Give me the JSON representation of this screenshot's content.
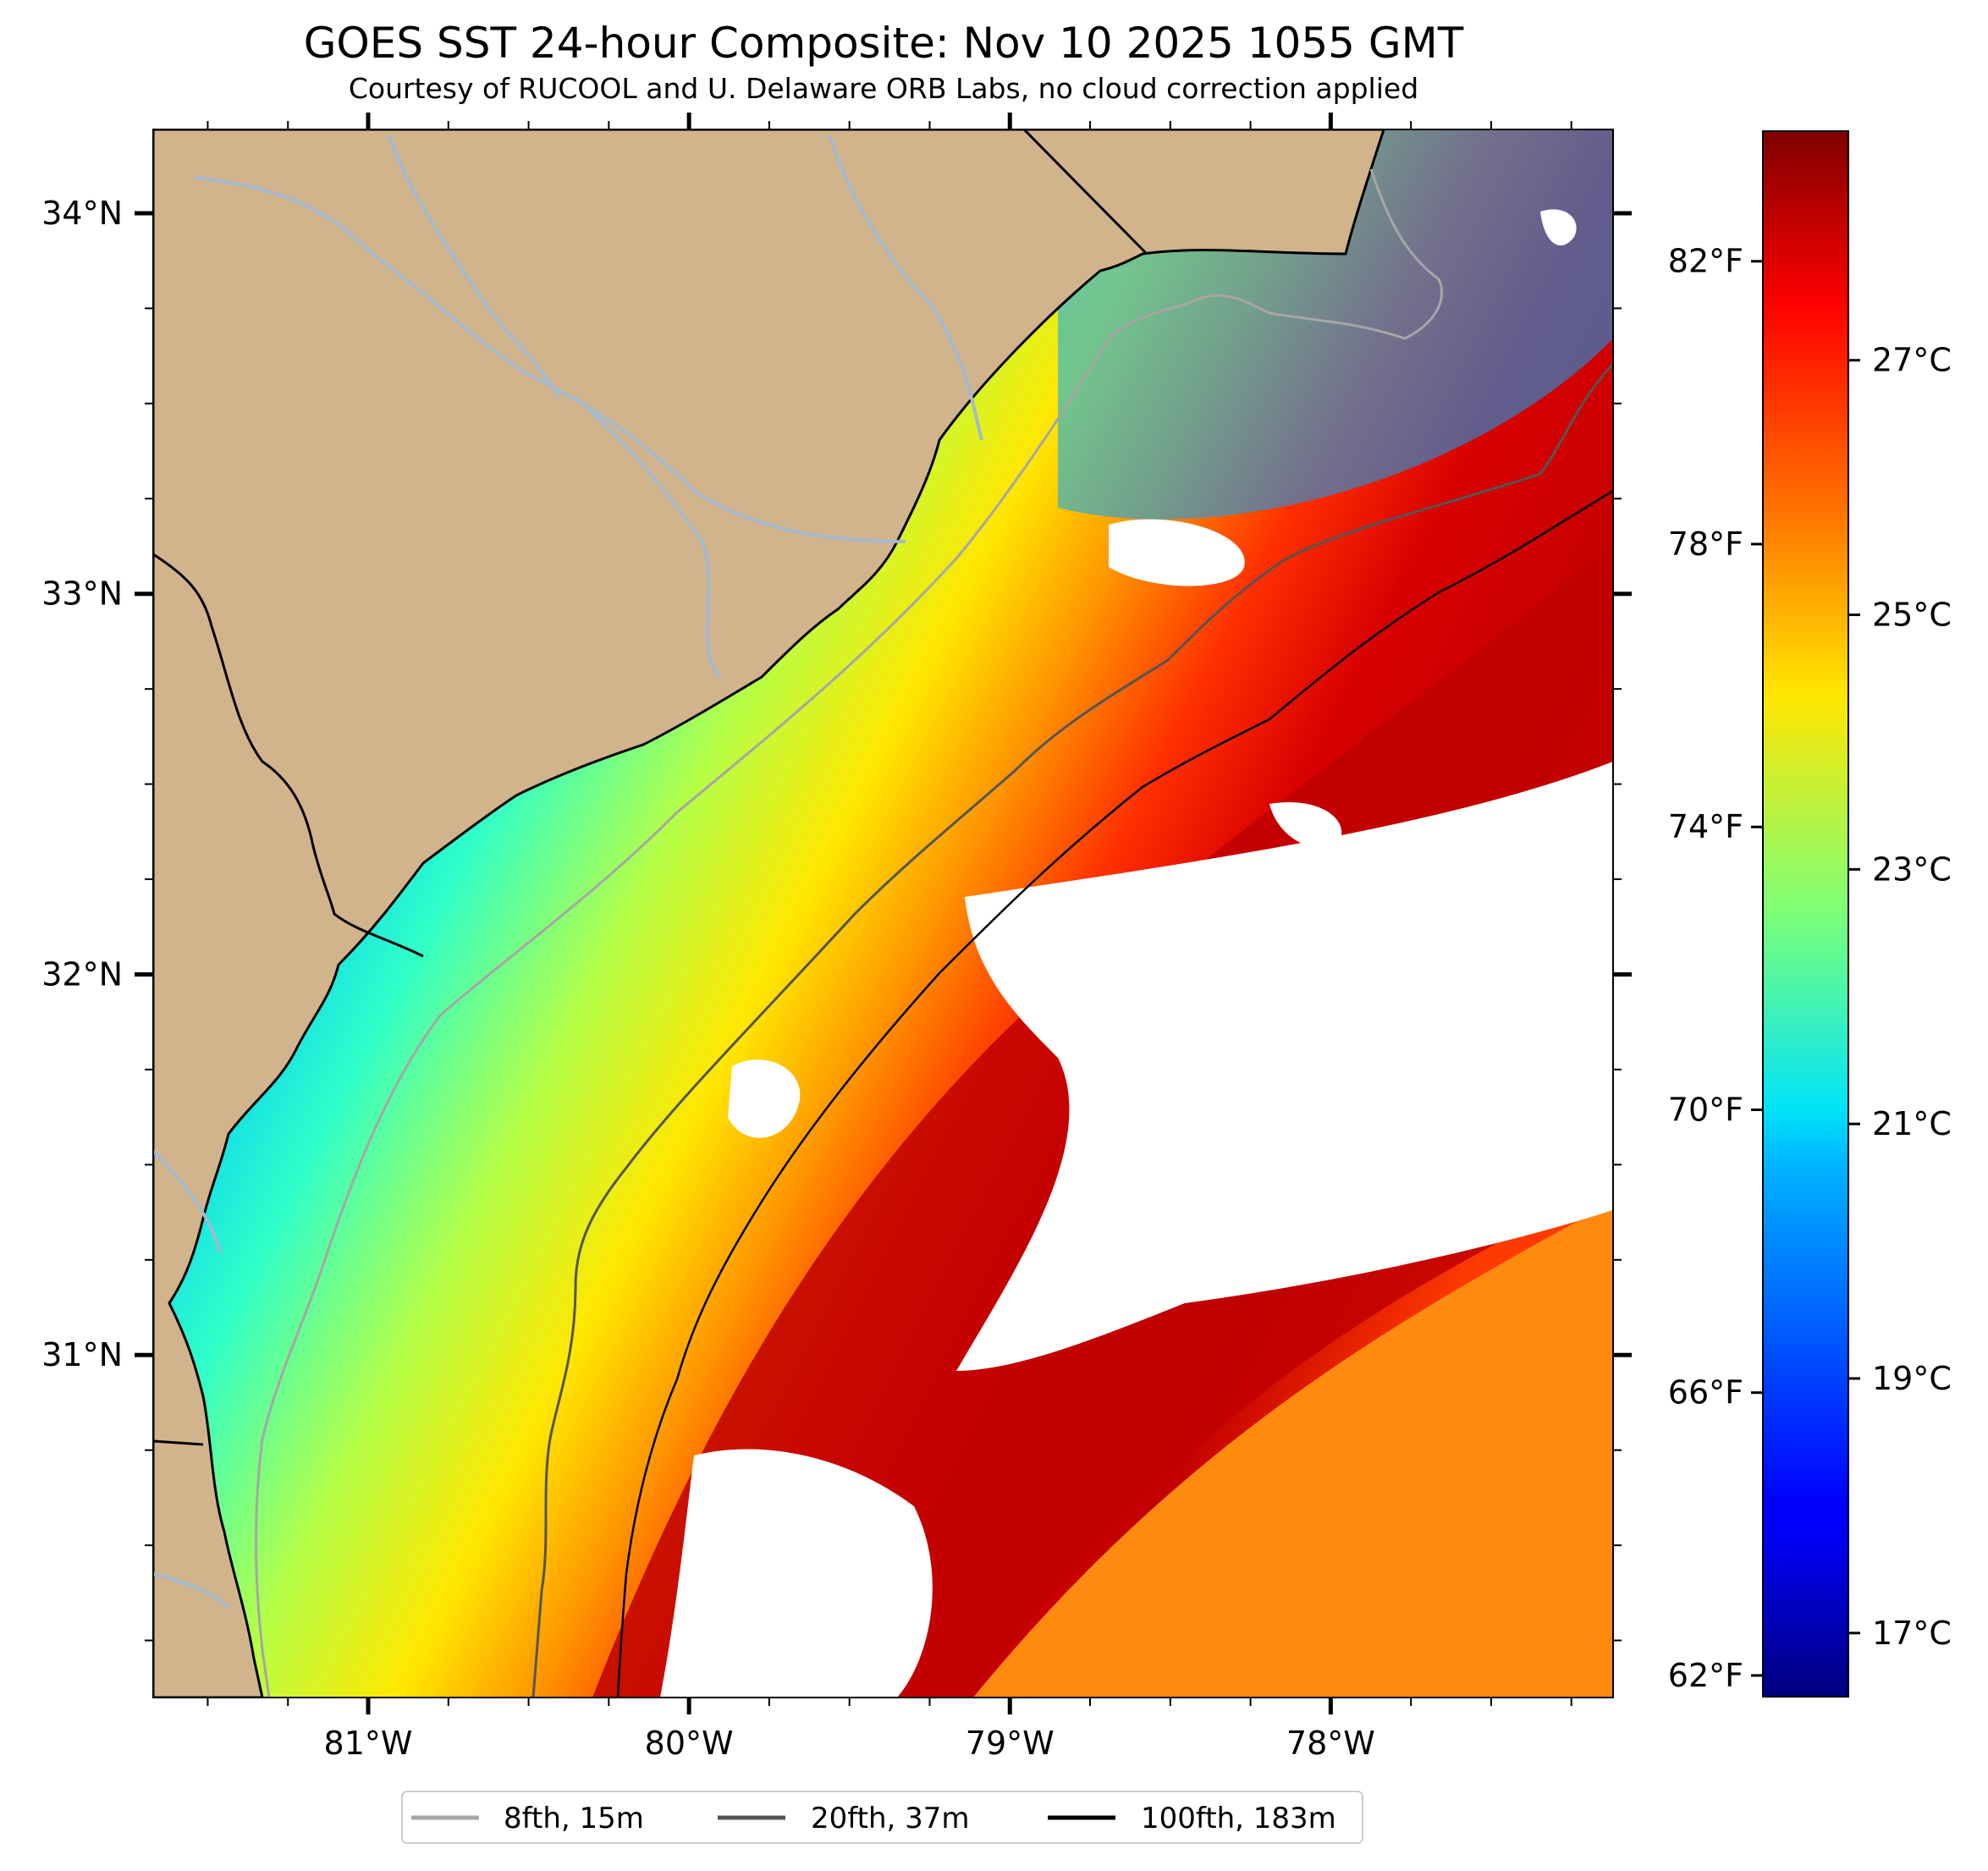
{
  "title": "GOES SST 24-hour Composite: Nov 10 2025 1055 GMT",
  "subtitle": "Courtesy of RUCOOL and U. Delaware ORB Labs, no cloud correction applied",
  "map": {
    "lon_range": [
      -81.67,
      -77.12
    ],
    "lat_range": [
      30.1,
      34.22
    ],
    "lat_ticks": [
      {
        "value": 34,
        "label": "34°N"
      },
      {
        "value": 33,
        "label": "33°N"
      },
      {
        "value": 32,
        "label": "32°N"
      },
      {
        "value": 31,
        "label": "31°N"
      }
    ],
    "lon_ticks": [
      {
        "value": -81,
        "label": "81°W"
      },
      {
        "value": -80,
        "label": "80°W"
      },
      {
        "value": -79,
        "label": "79°W"
      },
      {
        "value": -78,
        "label": "78°W"
      }
    ],
    "colors": {
      "land": "#d2b48c",
      "coast": "#000000",
      "rivers": "#a5b9cc",
      "clouds": "#ffffff"
    }
  },
  "colorbar": {
    "colormap": "jet",
    "celsius_range": [
      16.5,
      28.8
    ],
    "fahrenheit_labels": [
      "82°F",
      "78°F",
      "74°F",
      "70°F",
      "66°F",
      "62°F"
    ],
    "celsius_labels": [
      "27°C",
      "25°C",
      "23°C",
      "21°C",
      "19°C",
      "17°C"
    ]
  },
  "legend": {
    "items": [
      {
        "label": "8fth, 15m",
        "color": "#a6a6a6"
      },
      {
        "label": "20fth, 37m",
        "color": "#555555"
      },
      {
        "label": "100fth, 183m",
        "color": "#000000"
      }
    ]
  }
}
